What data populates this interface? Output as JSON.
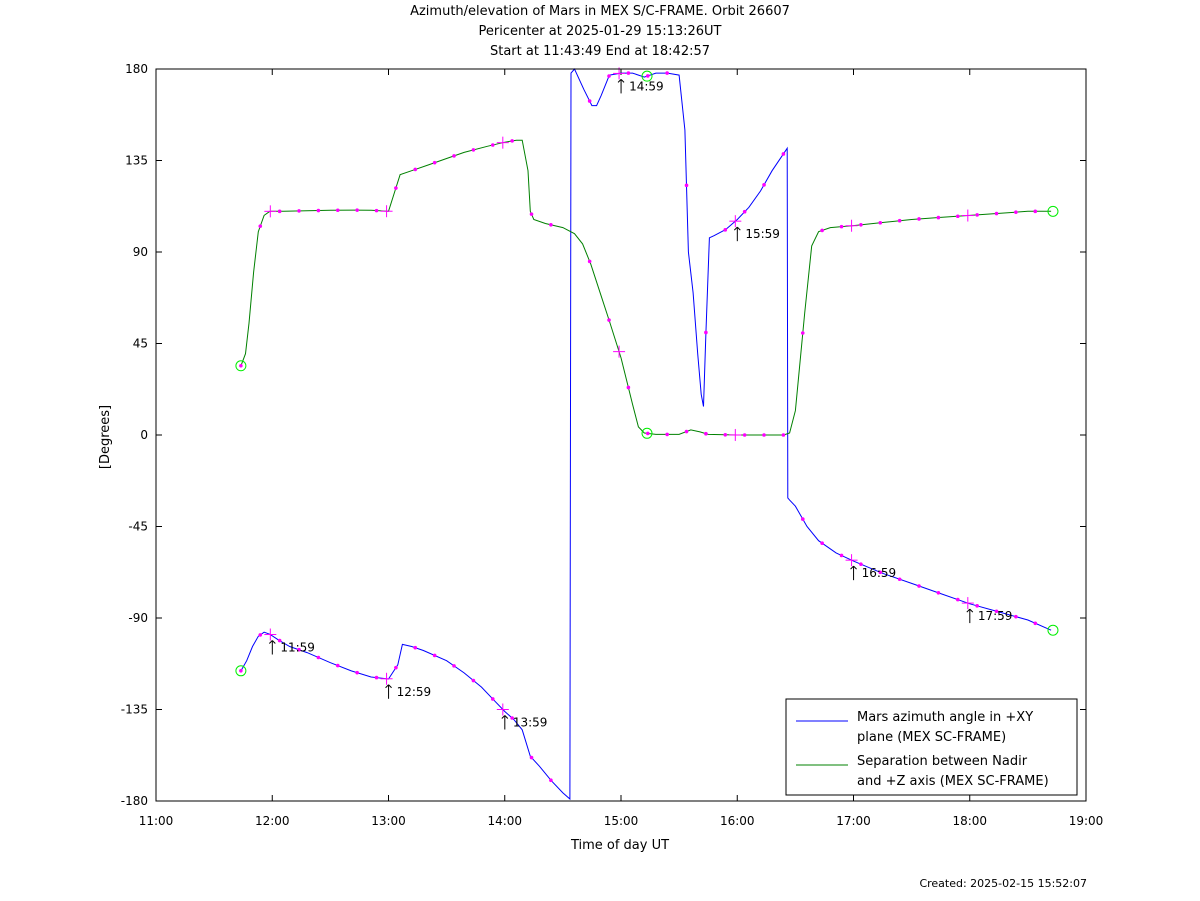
{
  "chart_data": {
    "type": "line",
    "title_lines": [
      "Azimuth/elevation of Mars in MEX S/C-FRAME.  Orbit 26607",
      "Pericenter at 2025-01-29 15:13:26UT",
      "Start at 11:43:49 End at 18:42:57"
    ],
    "xlabel": "Time of day UT",
    "ylabel": "[Degrees]",
    "xlim": [
      11.0,
      19.0
    ],
    "ylim": [
      -180,
      180
    ],
    "x_ticks": [
      11,
      12,
      13,
      14,
      15,
      16,
      17,
      18,
      19
    ],
    "x_tick_labels": [
      "11:00",
      "12:00",
      "13:00",
      "14:00",
      "15:00",
      "16:00",
      "17:00",
      "18:00",
      "19:00"
    ],
    "y_ticks": [
      180,
      135,
      90,
      45,
      0,
      -45,
      -90,
      -135,
      -180
    ],
    "y_tick_labels": [
      "180",
      "135",
      "90",
      "45",
      "0",
      "-45",
      "-90",
      "-135",
      "-180"
    ],
    "legend_position": "bottom-right",
    "series": [
      {
        "name": "Mars azimuth angle in +XY plane (MEX SC-FRAME)",
        "legend_lines": [
          "Mars azimuth angle in +XY",
          "plane (MEX SC-FRAME)"
        ],
        "color": "#0000ff",
        "x": [
          11.73,
          11.78,
          11.83,
          11.88,
          11.93,
          11.98,
          12.06,
          12.15,
          12.3,
          12.5,
          12.68,
          12.85,
          13.0,
          13.08,
          13.12,
          13.2,
          13.3,
          13.5,
          13.65,
          13.8,
          13.9,
          14.0,
          14.08,
          14.15,
          14.22,
          14.3,
          14.4,
          14.5,
          14.56,
          14.57,
          14.6,
          14.68,
          14.75,
          14.79,
          14.83,
          14.9,
          15.0,
          15.1,
          15.2,
          15.3,
          15.4,
          15.5,
          15.55,
          15.58,
          15.62,
          15.66,
          15.69,
          15.71,
          15.73,
          15.76,
          15.8,
          15.9,
          16.0,
          16.1,
          16.2,
          16.3,
          16.43,
          16.435,
          16.45,
          16.5,
          16.6,
          16.7,
          16.85,
          17.0,
          17.25,
          17.5,
          17.75,
          18.0,
          18.25,
          18.5,
          18.7
        ],
        "y": [
          -116,
          -111,
          -104,
          -99,
          -97,
          -98,
          -101,
          -104,
          -107,
          -112,
          -116,
          -119,
          -120,
          -113,
          -103,
          -104,
          -106,
          -111,
          -117,
          -124,
          -130,
          -136,
          -140,
          -145,
          -158,
          -163,
          -170,
          -176,
          -179,
          178,
          180,
          170,
          162,
          162,
          167,
          177,
          178,
          178,
          176,
          178,
          178,
          177,
          150,
          90,
          70,
          40,
          20,
          14,
          50,
          97,
          98,
          101,
          106,
          112,
          120,
          130,
          141,
          -31,
          -32,
          -35,
          -45,
          -52,
          -58,
          -62,
          -68,
          -73,
          -78,
          -83,
          -87,
          -91,
          -96
        ]
      },
      {
        "name": "Separation between Nadir and +Z axis (MEX SC-FRAME)",
        "legend_lines": [
          "Separation between Nadir",
          "and +Z axis (MEX SC-FRAME)"
        ],
        "color": "#008000",
        "x": [
          11.73,
          11.77,
          11.8,
          11.84,
          11.88,
          11.93,
          11.98,
          12.1,
          12.3,
          12.5,
          12.7,
          12.85,
          13.0,
          13.05,
          13.1,
          13.2,
          13.35,
          13.5,
          13.65,
          13.85,
          14.0,
          14.1,
          14.15,
          14.2,
          14.22,
          14.25,
          14.35,
          14.5,
          14.6,
          14.67,
          14.74,
          14.82,
          14.9,
          15.0,
          15.1,
          15.15,
          15.2,
          15.3,
          15.5,
          15.6,
          15.68,
          15.75,
          15.9,
          16.0,
          16.2,
          16.4,
          16.45,
          16.5,
          16.58,
          16.64,
          16.7,
          16.8,
          17.0,
          17.25,
          17.5,
          17.75,
          18.0,
          18.25,
          18.5,
          18.7
        ],
        "y": [
          34,
          40,
          55,
          80,
          100,
          108,
          110,
          110,
          110.3,
          110.5,
          110.6,
          110.5,
          110,
          119,
          128,
          130,
          133,
          136,
          139,
          142,
          144,
          145,
          145,
          130,
          110,
          106,
          104,
          102,
          99,
          94,
          84,
          70,
          56,
          38,
          15,
          4,
          1,
          0.3,
          0.3,
          2.5,
          1.5,
          0.3,
          0.1,
          0,
          0,
          0,
          1,
          12,
          60,
          93,
          100,
          102,
          103,
          104.5,
          106,
          107,
          108,
          109,
          110,
          110
        ]
      }
    ],
    "time_markers": [
      "11:59",
      "12:59",
      "13:59",
      "14:59",
      "15:59",
      "16:59",
      "17:59"
    ],
    "footer": "Created: 2025-02-15 15:52:07"
  }
}
